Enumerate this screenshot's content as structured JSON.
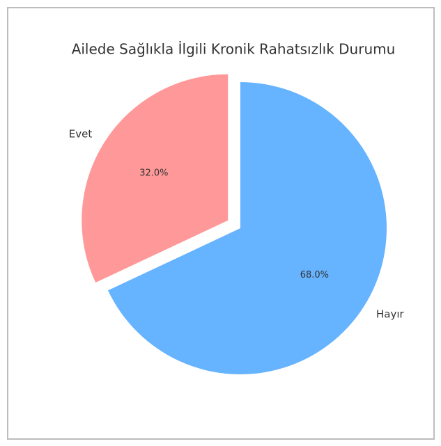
{
  "chart_data": {
    "type": "pie",
    "title": "Ailede Sağlıkla İlgili Kronik Rahatsızlık Durumu",
    "categories": [
      "Evet",
      "Hayır"
    ],
    "values": [
      32,
      68
    ],
    "value_labels": [
      "32.0%",
      "68.0%"
    ],
    "colors": [
      "#ff9999",
      "#66b3ff"
    ]
  }
}
